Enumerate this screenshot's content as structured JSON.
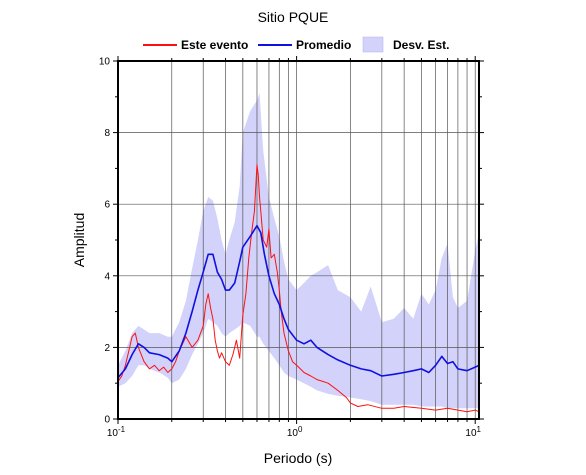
{
  "chart_data": {
    "type": "line",
    "title": "Sitio PQUE",
    "xlabel": "Periodo (s)",
    "ylabel": "Amplitud",
    "x_scale": "log",
    "xlim": [
      0.1,
      10.5
    ],
    "ylim": [
      0,
      10
    ],
    "x_ticks": [
      {
        "value": 0.1,
        "base": "10",
        "exp": "-1"
      },
      {
        "value": 1,
        "base": "10",
        "exp": "0"
      },
      {
        "value": 10,
        "base": "10",
        "exp": "1"
      }
    ],
    "y_ticks": [
      "0",
      "2",
      "4",
      "6",
      "8",
      "10"
    ],
    "grid": true,
    "legend_position": "top",
    "legend": [
      {
        "label": "Este evento",
        "kind": "line",
        "color": "#ff1010"
      },
      {
        "label": "Promedio",
        "kind": "line",
        "color": "#1010e0"
      },
      {
        "label": "Desv. Est.",
        "kind": "band",
        "color": "#d2d2fa"
      }
    ],
    "series": [
      {
        "name": "Este evento",
        "color": "#ff1010",
        "x": [
          0.1,
          0.105,
          0.11,
          0.115,
          0.12,
          0.125,
          0.13,
          0.14,
          0.15,
          0.16,
          0.17,
          0.18,
          0.19,
          0.2,
          0.21,
          0.22,
          0.24,
          0.26,
          0.28,
          0.3,
          0.31,
          0.32,
          0.33,
          0.34,
          0.35,
          0.36,
          0.37,
          0.38,
          0.4,
          0.42,
          0.44,
          0.46,
          0.48,
          0.5,
          0.52,
          0.54,
          0.56,
          0.58,
          0.6,
          0.61,
          0.62,
          0.63,
          0.65,
          0.68,
          0.7,
          0.72,
          0.75,
          0.78,
          0.8,
          0.82,
          0.85,
          0.9,
          0.95,
          1.0,
          1.05,
          1.1,
          1.2,
          1.3,
          1.4,
          1.5,
          1.7,
          1.9,
          2.0,
          2.2,
          2.5,
          3.0,
          3.5,
          4.0,
          5.0,
          6.0,
          7.0,
          8.0,
          9.0,
          10.0,
          10.5
        ],
        "values": [
          1.05,
          1.2,
          1.5,
          1.9,
          2.3,
          2.4,
          2.0,
          1.6,
          1.4,
          1.5,
          1.35,
          1.45,
          1.3,
          1.4,
          1.6,
          1.9,
          2.3,
          2.0,
          2.2,
          2.6,
          3.2,
          3.5,
          3.1,
          2.8,
          2.2,
          1.9,
          1.7,
          1.85,
          1.6,
          1.5,
          1.8,
          2.2,
          1.7,
          2.9,
          3.5,
          4.5,
          5.2,
          5.8,
          7.1,
          6.8,
          6.2,
          5.8,
          5.0,
          4.8,
          5.3,
          4.5,
          4.6,
          4.1,
          3.6,
          3.0,
          2.4,
          1.9,
          1.6,
          1.5,
          1.4,
          1.3,
          1.2,
          1.1,
          1.05,
          1.0,
          0.8,
          0.6,
          0.45,
          0.35,
          0.4,
          0.3,
          0.3,
          0.35,
          0.3,
          0.25,
          0.3,
          0.25,
          0.2,
          0.25,
          0.2
        ]
      },
      {
        "name": "Promedio",
        "color": "#1010e0",
        "x": [
          0.1,
          0.11,
          0.12,
          0.13,
          0.14,
          0.15,
          0.17,
          0.19,
          0.2,
          0.22,
          0.24,
          0.26,
          0.28,
          0.3,
          0.32,
          0.34,
          0.36,
          0.38,
          0.4,
          0.42,
          0.45,
          0.48,
          0.5,
          0.55,
          0.6,
          0.63,
          0.66,
          0.7,
          0.75,
          0.8,
          0.85,
          0.9,
          1.0,
          1.1,
          1.2,
          1.3,
          1.5,
          1.7,
          2.0,
          2.3,
          2.6,
          3.0,
          3.5,
          4.0,
          4.5,
          5.0,
          5.5,
          6.0,
          6.5,
          7.0,
          7.5,
          8.0,
          9.0,
          10.0,
          10.5
        ],
        "values": [
          1.15,
          1.4,
          1.8,
          2.1,
          2.0,
          1.85,
          1.8,
          1.7,
          1.6,
          1.9,
          2.4,
          3.0,
          3.6,
          4.1,
          4.6,
          4.6,
          4.1,
          3.9,
          3.6,
          3.6,
          3.8,
          4.4,
          4.8,
          5.1,
          5.4,
          5.2,
          4.6,
          4.0,
          3.5,
          3.2,
          2.8,
          2.5,
          2.2,
          2.1,
          2.2,
          2.0,
          1.8,
          1.65,
          1.5,
          1.4,
          1.35,
          1.2,
          1.25,
          1.3,
          1.35,
          1.4,
          1.3,
          1.5,
          1.75,
          1.55,
          1.6,
          1.4,
          1.35,
          1.45,
          1.5
        ]
      }
    ],
    "band": {
      "name": "Desv. Est.",
      "color": "#d2d2fa",
      "x": [
        0.1,
        0.11,
        0.12,
        0.13,
        0.14,
        0.15,
        0.17,
        0.19,
        0.2,
        0.22,
        0.24,
        0.26,
        0.28,
        0.3,
        0.32,
        0.34,
        0.36,
        0.38,
        0.4,
        0.42,
        0.45,
        0.48,
        0.5,
        0.55,
        0.6,
        0.62,
        0.65,
        0.7,
        0.75,
        0.8,
        0.85,
        0.9,
        1.0,
        1.1,
        1.2,
        1.3,
        1.5,
        1.7,
        2.0,
        2.3,
        2.6,
        3.0,
        3.5,
        4.0,
        4.5,
        5.0,
        5.5,
        6.0,
        6.5,
        7.0,
        7.5,
        8.0,
        9.0,
        10.0,
        10.5
      ],
      "upper": [
        1.5,
        1.9,
        2.4,
        2.6,
        2.5,
        2.4,
        2.4,
        2.3,
        2.3,
        2.7,
        3.3,
        4.2,
        5.0,
        5.8,
        6.2,
        6.1,
        5.6,
        5.0,
        4.6,
        5.0,
        5.5,
        6.5,
        8.0,
        8.6,
        8.9,
        9.1,
        7.5,
        6.2,
        5.6,
        5.1,
        4.4,
        3.9,
        3.6,
        3.8,
        4.0,
        4.1,
        4.3,
        3.6,
        3.4,
        3.0,
        3.7,
        2.7,
        2.8,
        3.1,
        2.8,
        3.5,
        3.2,
        3.6,
        4.5,
        4.9,
        3.4,
        3.1,
        3.3,
        4.7,
        5.2
      ],
      "lower": [
        0.9,
        1.0,
        1.2,
        1.5,
        1.5,
        1.4,
        1.3,
        1.15,
        1.0,
        1.1,
        1.4,
        1.8,
        2.1,
        2.4,
        2.8,
        2.7,
        2.6,
        2.4,
        2.3,
        2.4,
        2.5,
        2.6,
        2.7,
        2.6,
        2.3,
        2.3,
        2.1,
        1.9,
        1.7,
        1.5,
        1.3,
        1.2,
        1.1,
        1.0,
        0.9,
        0.8,
        0.7,
        0.65,
        0.6,
        0.55,
        0.5,
        0.4,
        0.4,
        0.4,
        0.4,
        0.35,
        0.35,
        0.35,
        0.35,
        0.3,
        0.3,
        0.3,
        0.3,
        0.3,
        0.3
      ]
    }
  }
}
